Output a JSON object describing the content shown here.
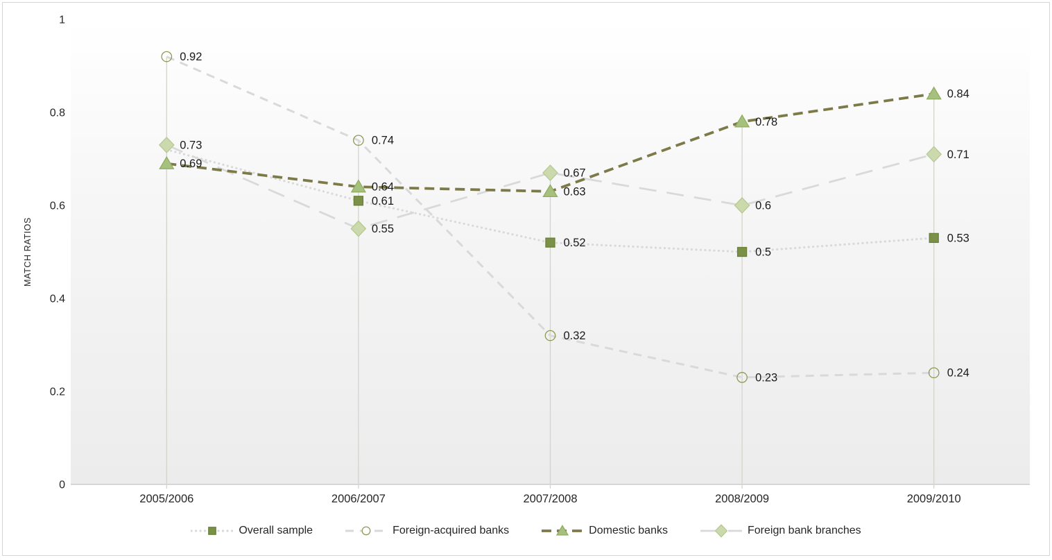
{
  "frame": {
    "border_color": "#d5d5d5",
    "background": "#ffffff"
  },
  "chart_data": {
    "type": "line",
    "title": "",
    "xlabel": "",
    "ylabel": "MATCH RATIOS",
    "categories": [
      "2005/2006",
      "2006/2007",
      "2007/2008",
      "2008/2009",
      "2009/2010"
    ],
    "ylim": [
      0,
      1
    ],
    "yticks": [
      "0",
      "0.2",
      "0.4",
      "0.6",
      "0.8",
      "1"
    ],
    "grid": "off",
    "drop_lines": true,
    "legend_position": "bottom",
    "colors": {
      "plot_bg_top": "#ffffff",
      "plot_bg_bottom": "#ececec",
      "axis_line": "#d6d6d6",
      "drop_line": "#d3d3cd",
      "axis_text": "#262626",
      "data_label_text": "#1a1a1a",
      "gray_line": "#d9d9d9",
      "olive_line": "#7d7a49"
    },
    "series": [
      {
        "name": "Overall sample",
        "marker": "square",
        "line_style": "dotted",
        "line_color": "#d9d9d9",
        "marker_fill": "#7a9147",
        "marker_stroke": "#69803a",
        "values": [
          0.72,
          0.61,
          0.52,
          0.5,
          0.53
        ],
        "labels": [
          null,
          "0.61",
          "0.52",
          "0.5",
          "0.53"
        ]
      },
      {
        "name": "Foreign-acquired banks",
        "marker": "circle",
        "line_style": "dashed",
        "line_color": "#d9d9d9",
        "marker_fill": "none",
        "marker_stroke": "#8b9c52",
        "values": [
          0.92,
          0.74,
          0.32,
          0.23,
          0.24
        ],
        "labels": [
          "0.92",
          "0.74",
          "0.32",
          "0.23",
          "0.24"
        ]
      },
      {
        "name": "Domestic banks",
        "marker": "triangle",
        "line_style": "dashed-bold",
        "line_color": "#7d7a49",
        "marker_fill": "#a6c17d",
        "marker_stroke": "#90ad62",
        "values": [
          0.69,
          0.64,
          0.63,
          0.78,
          0.84
        ],
        "labels": [
          "0.69",
          "0.64",
          "0.63",
          "0.78",
          "0.84"
        ]
      },
      {
        "name": "Foreign bank branches",
        "marker": "diamond",
        "line_style": "long-dash",
        "line_color": "#d9d9d9",
        "marker_fill": "#cbd9ac",
        "marker_stroke": "#b7c993",
        "values": [
          0.73,
          0.55,
          0.67,
          0.6,
          0.71
        ],
        "labels": [
          "0.73",
          "0.55",
          "0.67",
          "0.6",
          "0.71"
        ]
      }
    ]
  }
}
